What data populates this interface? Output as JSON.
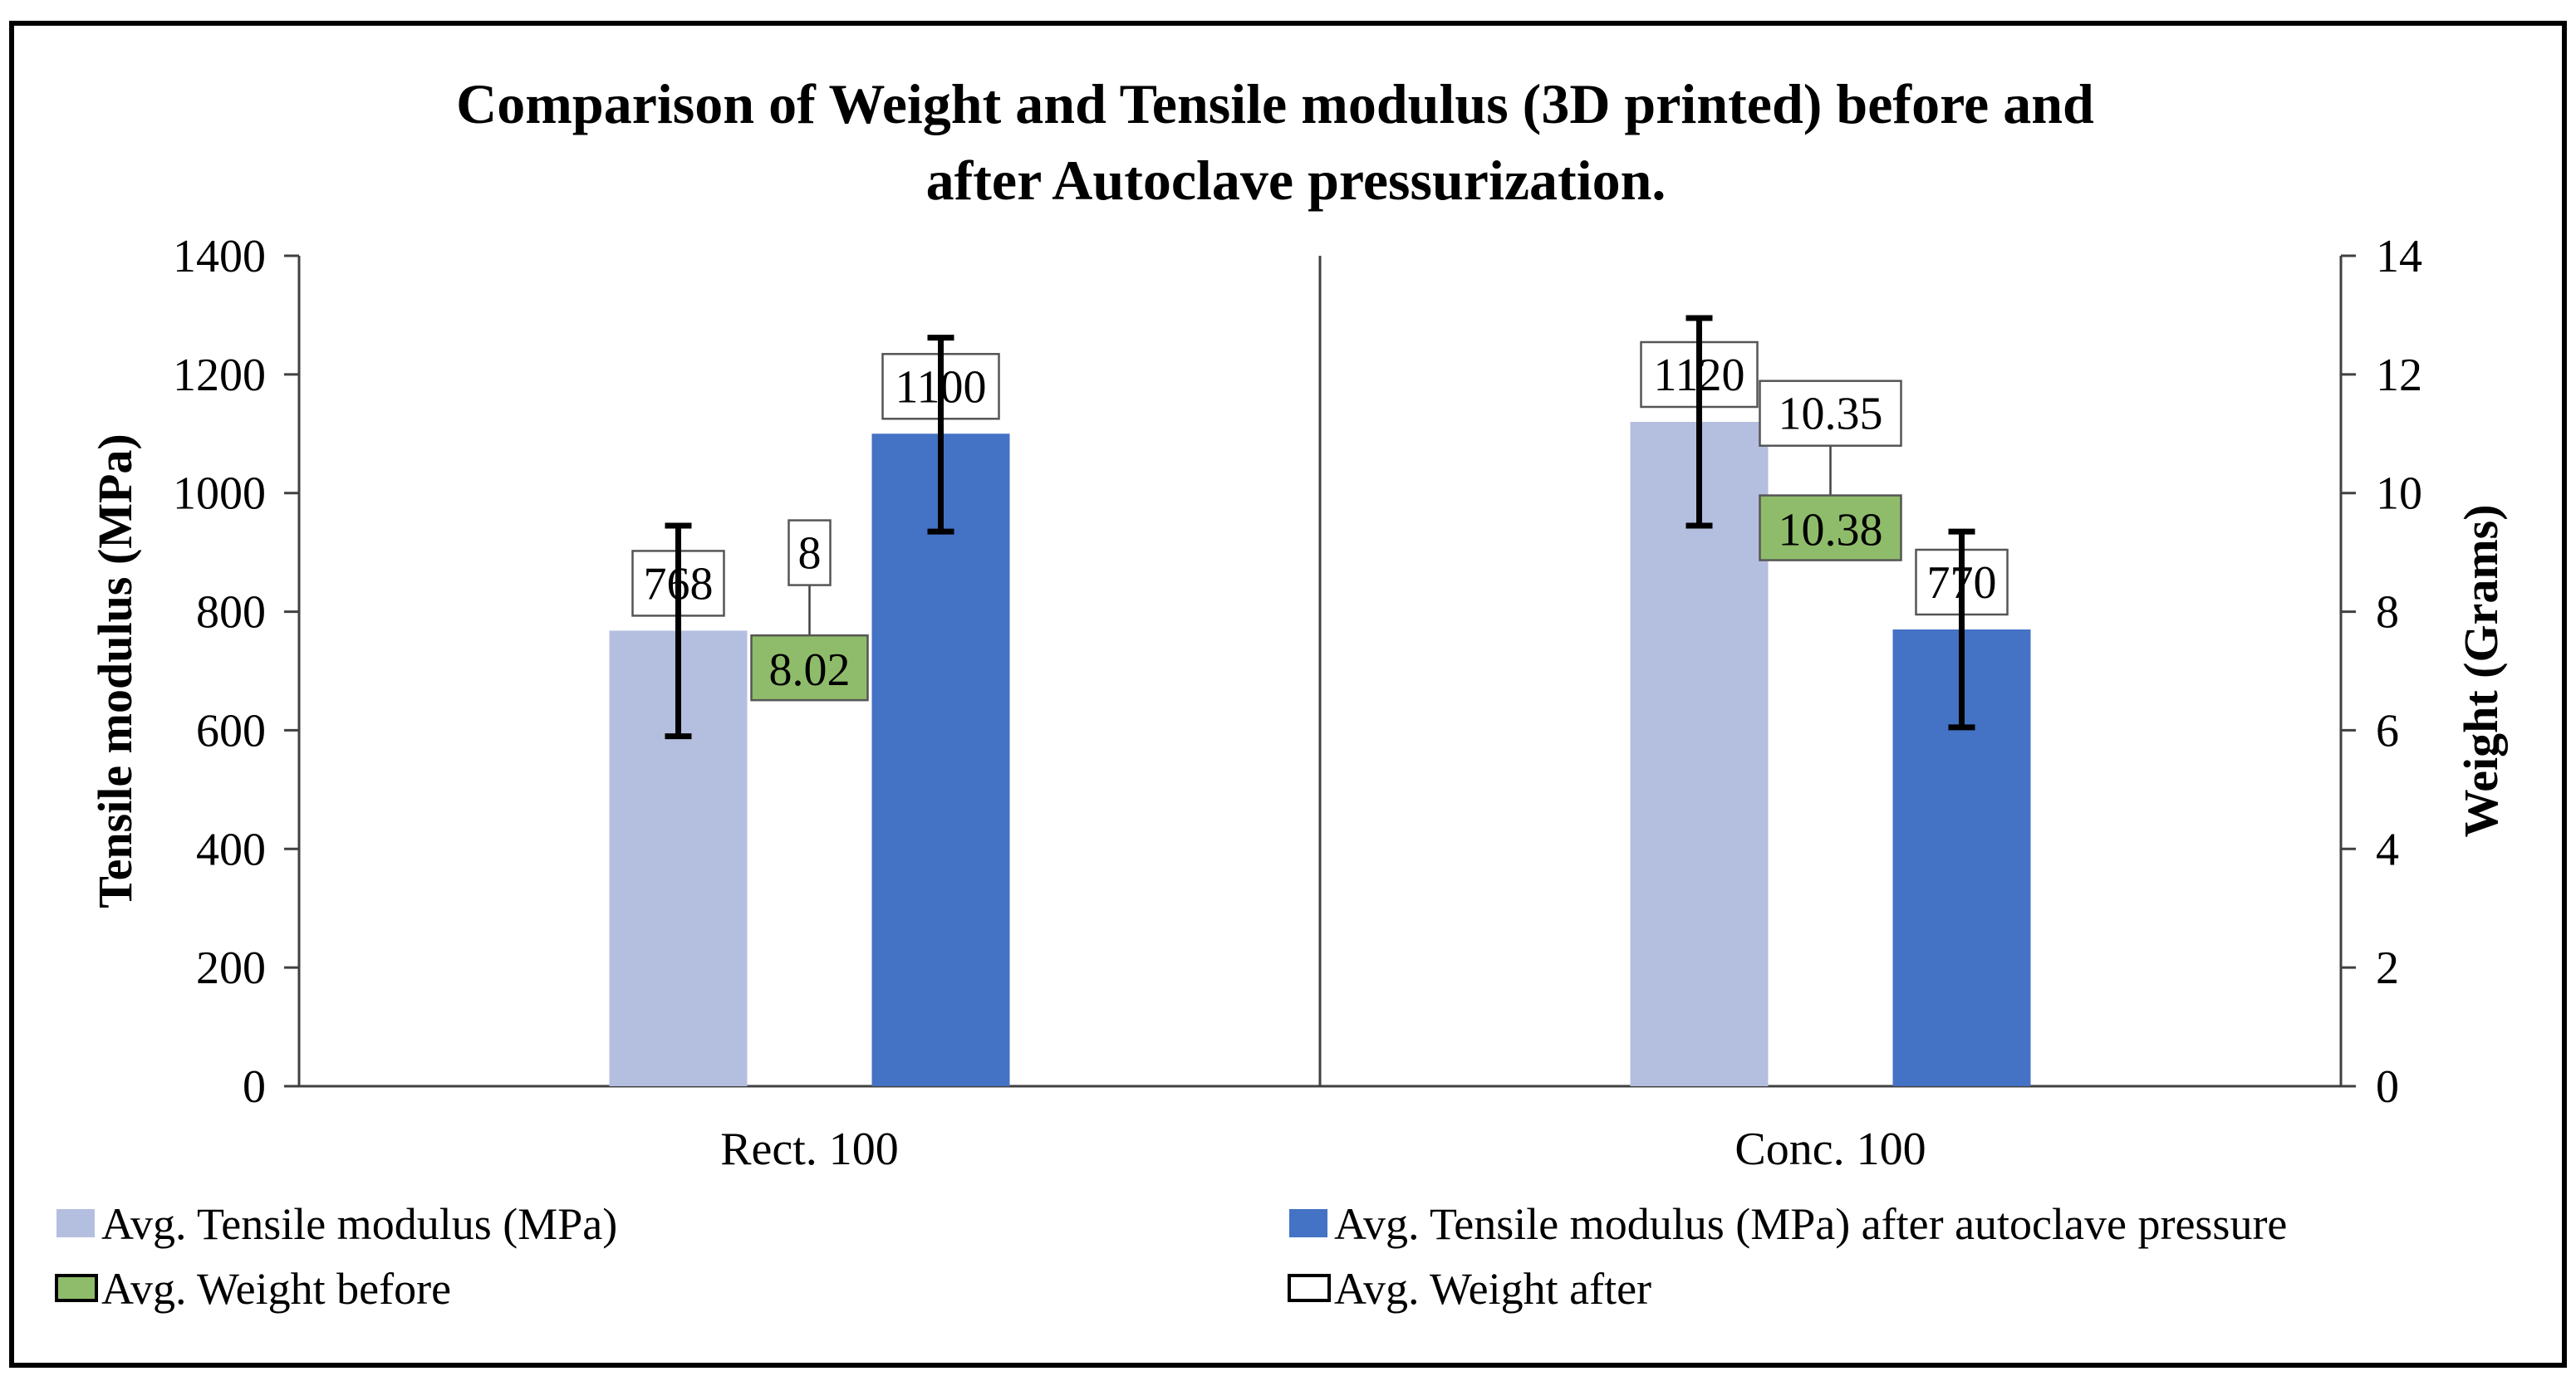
{
  "colors": {
    "tensile_before": "#b4bfe0",
    "tensile_after": "#4472c4",
    "weight_before": "#8fbc6a",
    "weight_after": "#ffffff",
    "frame": "#000000",
    "axis": "#404040"
  },
  "chart_data": {
    "type": "bar",
    "title": [
      "Comparison of Weight and Tensile modulus (3D printed) before and",
      "after Autoclave pressurization."
    ],
    "categories": [
      "Rect. 100",
      "Conc. 100"
    ],
    "y_left": {
      "label": "Tensile modulus (MPa)",
      "lim": [
        0,
        1400
      ],
      "ticks": [
        "0",
        "200",
        "400",
        "600",
        "800",
        "1000",
        "1200",
        "1400"
      ]
    },
    "y_right": {
      "label": "Weight (Grams)",
      "lim": [
        0,
        14
      ],
      "ticks": [
        "0",
        "2",
        "4",
        "6",
        "8",
        "10",
        "12",
        "14"
      ]
    },
    "series": [
      {
        "name": "Avg. Tensile modulus (MPa)",
        "kind": "bar",
        "axis": "left",
        "values": [
          768,
          1120
        ],
        "labels": [
          "768",
          "1120"
        ],
        "error": [
          [
            590,
            945
          ],
          [
            945,
            1295
          ]
        ],
        "color": "#b4bfe0"
      },
      {
        "name": "Avg. Tensile modulus (MPa) after autoclave pressure",
        "kind": "bar",
        "axis": "left",
        "values": [
          1100,
          770
        ],
        "labels": [
          "1100",
          "770"
        ],
        "error": [
          [
            935,
            1262
          ],
          [
            605,
            935
          ]
        ],
        "color": "#4472c4"
      },
      {
        "name": "Avg. Weight before",
        "kind": "marker",
        "axis": "right",
        "values": [
          8.02,
          10.38
        ],
        "labels": [
          "8.02",
          "10.38"
        ],
        "color": "#8fbc6a"
      },
      {
        "name": "Avg. Weight after",
        "kind": "marker",
        "axis": "right",
        "values": [
          8,
          10.35
        ],
        "labels": [
          "8",
          "10.35"
        ],
        "color": "#ffffff"
      }
    ],
    "grid": false,
    "legend": "bottom"
  }
}
